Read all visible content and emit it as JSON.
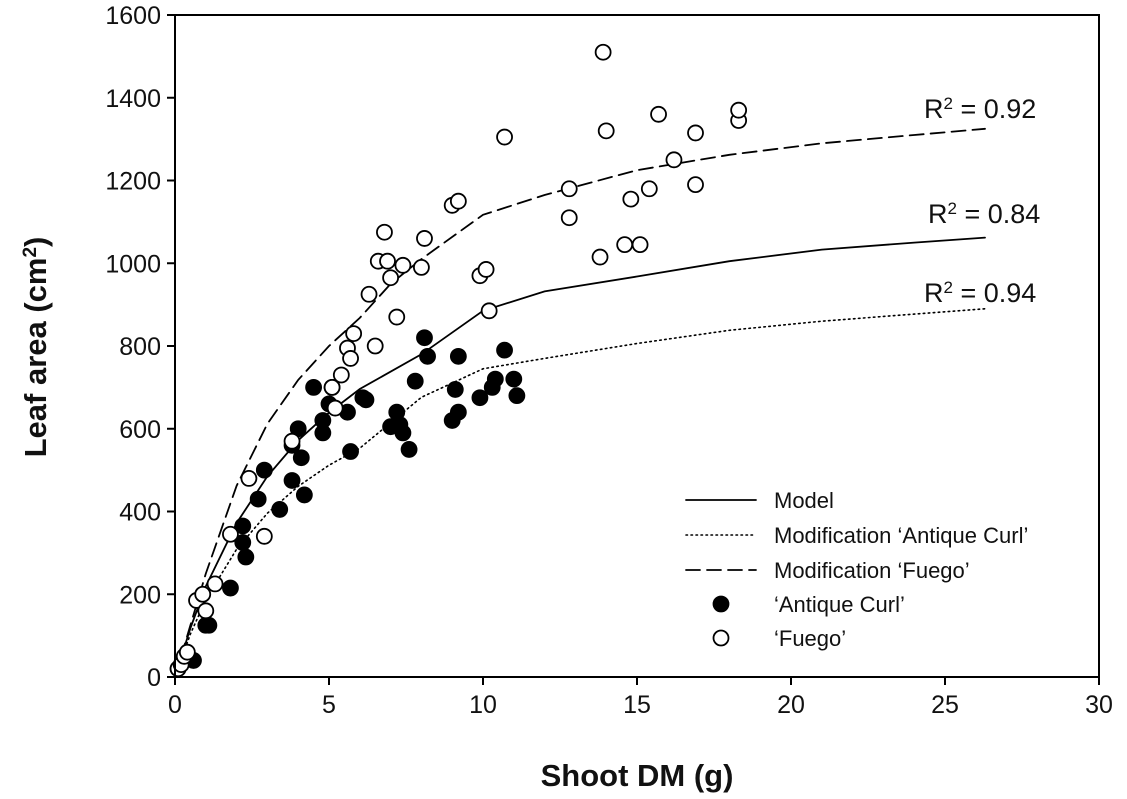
{
  "chart_data": {
    "type": "scatter",
    "xlabel": "Shoot DM (g)",
    "ylabel_main": "Leaf area (cm",
    "ylabel_sup": "2",
    "ylabel_close": ")",
    "xlim": [
      0,
      30
    ],
    "ylim": [
      0,
      1600
    ],
    "x_ticks": [
      0,
      5,
      10,
      15,
      20,
      25,
      30
    ],
    "y_ticks": [
      0,
      200,
      400,
      600,
      800,
      1000,
      1200,
      1400,
      1600
    ],
    "grid": false,
    "legend_placement": "bottom-right",
    "legend": [
      {
        "label": "Model",
        "style": "solid"
      },
      {
        "label": "Modification ‘Antique Curl’",
        "style": "dotted"
      },
      {
        "label": "Modification ‘Fuego’",
        "style": "dashed"
      },
      {
        "label": "‘Antique Curl’",
        "style": "filled-circle"
      },
      {
        "label": "‘Fuego’",
        "style": "open-circle"
      }
    ],
    "curves": [
      {
        "style": "solid",
        "r2_prefix": "R",
        "r2_sup": "2",
        "r2_value": " = 0.84",
        "x": [
          0,
          0.5,
          1,
          2,
          3,
          4,
          5,
          6,
          8,
          10,
          12,
          15,
          18,
          21,
          24,
          26.3
        ],
        "y": [
          0,
          118,
          219,
          372,
          485,
          572,
          639,
          696,
          780,
          885,
          932,
          968,
          1005,
          1033,
          1050,
          1062
        ]
      },
      {
        "style": "dotted",
        "r2_prefix": "R",
        "r2_sup": "2",
        "r2_value": " = 0.94",
        "x": [
          0,
          0.5,
          1,
          2,
          3,
          4,
          5,
          6,
          8,
          10,
          12,
          15,
          18,
          21,
          24,
          26.3
        ],
        "y": [
          0,
          104,
          187,
          309,
          396,
          461,
          512,
          553,
          676,
          745,
          770,
          806,
          838,
          860,
          877,
          890
        ]
      },
      {
        "style": "dashed",
        "r2_prefix": "R",
        "r2_sup": "2",
        "r2_value": " = 0.92",
        "x": [
          0,
          0.5,
          1,
          2,
          3,
          4,
          5,
          6,
          7,
          8,
          10,
          12,
          15,
          18,
          21,
          24,
          26.3
        ],
        "y": [
          0,
          125,
          250,
          462,
          612,
          718,
          800,
          868,
          950,
          1010,
          1117,
          1165,
          1225,
          1262,
          1290,
          1310,
          1325
        ]
      }
    ],
    "series": [
      {
        "name": "‘Antique Curl’",
        "marker": "filled",
        "x": [
          0.1,
          0.3,
          0.6,
          1.0,
          1.1,
          1.8,
          2.2,
          2.2,
          2.3,
          2.7,
          2.9,
          3.4,
          3.8,
          3.8,
          4.0,
          4.1,
          4.2,
          4.5,
          4.8,
          4.8,
          5.0,
          5.1,
          5.6,
          5.7,
          6.1,
          6.2,
          7.0,
          7.2,
          7.3,
          7.4,
          7.6,
          7.8,
          8.1,
          8.2,
          9.0,
          9.1,
          9.2,
          9.2,
          9.9,
          10.3,
          10.4,
          10.7,
          11.0,
          11.1
        ],
        "y": [
          20,
          40,
          40,
          125,
          125,
          215,
          365,
          325,
          290,
          430,
          500,
          405,
          560,
          475,
          600,
          530,
          440,
          700,
          620,
          590,
          660,
          700,
          640,
          545,
          675,
          670,
          605,
          640,
          610,
          590,
          550,
          715,
          820,
          775,
          620,
          695,
          640,
          775,
          675,
          700,
          720,
          790,
          720,
          680
        ]
      },
      {
        "name": "‘Fuego’",
        "marker": "open",
        "x": [
          0.1,
          0.2,
          0.3,
          0.4,
          0.7,
          0.9,
          1.0,
          1.3,
          1.8,
          2.4,
          2.9,
          3.8,
          5.1,
          5.2,
          5.4,
          5.6,
          5.7,
          5.8,
          6.3,
          6.5,
          6.6,
          6.8,
          6.9,
          7.0,
          7.2,
          7.4,
          8.0,
          8.1,
          9.0,
          9.2,
          9.9,
          10.1,
          10.2,
          10.7,
          12.8,
          12.8,
          13.8,
          13.9,
          14.0,
          14.6,
          14.8,
          15.1,
          15.4,
          15.7,
          16.2,
          16.9,
          16.9,
          18.3,
          18.3
        ],
        "y": [
          20,
          30,
          50,
          60,
          185,
          200,
          160,
          225,
          345,
          480,
          340,
          570,
          700,
          650,
          730,
          795,
          770,
          830,
          925,
          800,
          1005,
          1075,
          1005,
          965,
          870,
          995,
          990,
          1060,
          1140,
          1150,
          970,
          985,
          885,
          1305,
          1110,
          1180,
          1015,
          1510,
          1320,
          1045,
          1155,
          1045,
          1180,
          1360,
          1250,
          1315,
          1190,
          1345,
          1370
        ]
      }
    ]
  }
}
